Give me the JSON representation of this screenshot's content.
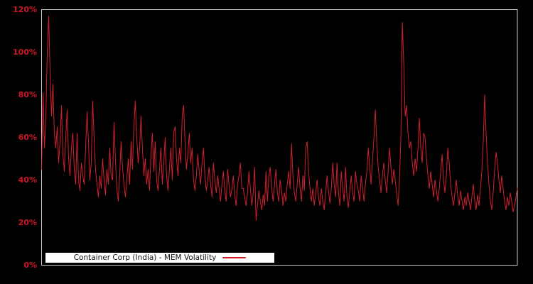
{
  "colors": {
    "background": "#000000",
    "line": "#d21f2e",
    "tick_label": "#cd1526",
    "plot_border": "#c8c8c8",
    "legend_background": "#ffffff",
    "legend_text": "#111111"
  },
  "chart_data": {
    "type": "line",
    "title": "",
    "xlabel": "",
    "ylabel": "",
    "grid": false,
    "plot_background": "#000000",
    "ylim": [
      0,
      120
    ],
    "yticks": [
      0,
      20,
      40,
      60,
      80,
      100,
      120
    ],
    "ytick_labels": [
      "0%",
      "20%",
      "40%",
      "60%",
      "80%",
      "100%",
      "120%"
    ],
    "xticks_visible": false,
    "legend": {
      "label": "Container Corp (India) - MEM Volatility",
      "position": "bottom-left",
      "style": "white box, black text, red line sample"
    },
    "series": [
      {
        "name": "Container Corp (India) - MEM Volatility",
        "color": "#d21f2e",
        "unit": "%",
        "values": [
          45,
          81,
          55,
          70,
          100,
          117,
          90,
          70,
          85,
          62,
          55,
          65,
          48,
          58,
          75,
          52,
          44,
          60,
          73,
          50,
          42,
          55,
          62,
          45,
          38,
          62,
          40,
          35,
          48,
          42,
          38,
          55,
          72,
          58,
          40,
          48,
          77,
          60,
          45,
          38,
          32,
          42,
          36,
          50,
          40,
          33,
          45,
          38,
          55,
          42,
          40,
          67,
          50,
          36,
          30,
          42,
          58,
          46,
          38,
          32,
          40,
          50,
          38,
          58,
          45,
          65,
          77,
          60,
          48,
          55,
          70,
          55,
          42,
          50,
          38,
          45,
          35,
          52,
          62,
          44,
          58,
          40,
          35,
          45,
          55,
          38,
          48,
          60,
          42,
          35,
          45,
          55,
          40,
          62,
          65,
          50,
          42,
          55,
          48,
          70,
          75,
          58,
          45,
          52,
          62,
          48,
          55,
          40,
          35,
          42,
          52,
          44,
          38,
          48,
          55,
          42,
          35,
          40,
          46,
          38,
          32,
          48,
          40,
          34,
          42,
          36,
          30,
          38,
          44,
          35,
          30,
          45,
          38,
          32,
          36,
          42,
          33,
          28,
          38,
          42,
          48,
          36,
          36,
          32,
          28,
          34,
          44,
          36,
          28,
          34,
          46,
          21,
          28,
          35,
          30,
          26,
          33,
          28,
          44,
          30,
          42,
          46,
          36,
          30,
          38,
          45,
          34,
          30,
          40,
          35,
          28,
          34,
          30,
          38,
          44,
          36,
          57,
          42,
          34,
          30,
          38,
          46,
          36,
          30,
          42,
          35,
          55,
          58,
          44,
          36,
          30,
          36,
          28,
          34,
          40,
          32,
          28,
          36,
          30,
          26,
          34,
          42,
          35,
          29,
          36,
          48,
          38,
          32,
          48,
          34,
          28,
          44,
          36,
          30,
          46,
          32,
          27,
          35,
          42,
          34,
          30,
          44,
          38,
          35,
          30,
          42,
          36,
          30,
          38,
          44,
          55,
          46,
          38,
          50,
          60,
          73,
          58,
          46,
          40,
          34,
          42,
          48,
          40,
          34,
          44,
          55,
          46,
          38,
          45,
          40,
          34,
          28,
          40,
          60,
          114,
          95,
          70,
          75,
          62,
          55,
          58,
          48,
          42,
          50,
          44,
          55,
          69,
          55,
          48,
          62,
          60,
          50,
          42,
          36,
          44,
          38,
          32,
          40,
          35,
          30,
          36,
          44,
          52,
          40,
          34,
          42,
          55,
          48,
          38,
          32,
          28,
          34,
          40,
          32,
          28,
          35,
          30,
          26,
          32,
          28,
          34,
          30,
          26,
          32,
          38,
          30,
          26,
          33,
          28,
          36,
          44,
          58,
          80,
          62,
          48,
          38,
          30,
          26,
          34,
          45,
          53,
          48,
          40,
          34,
          42,
          36,
          30,
          26,
          32,
          28,
          34,
          30,
          25,
          28,
          32,
          36
        ]
      }
    ]
  }
}
